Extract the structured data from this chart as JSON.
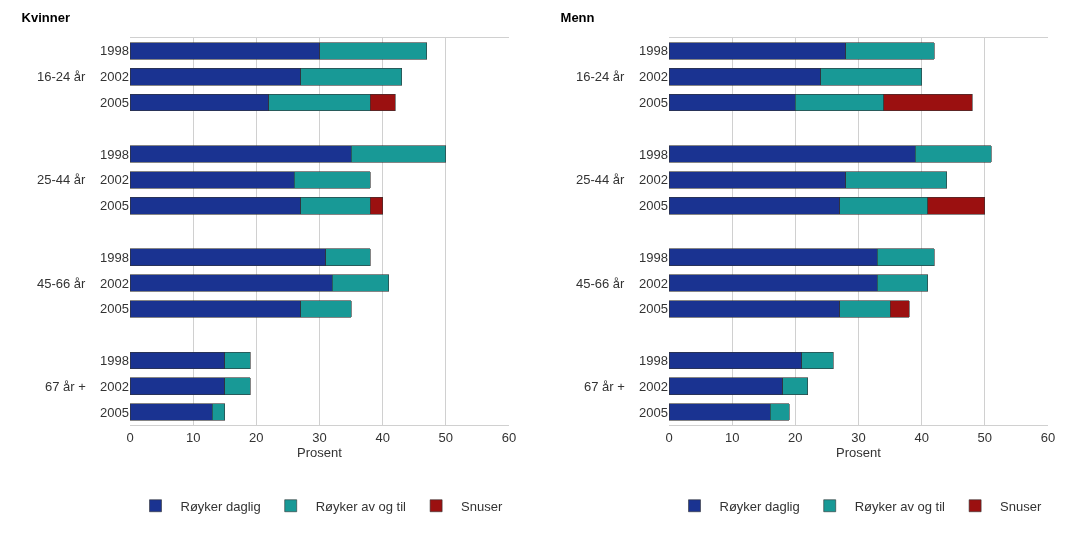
{
  "chart_data": [
    {
      "type": "bar",
      "orientation": "horizontal",
      "stacked": true,
      "title": "Kvinner",
      "xlabel": "Prosent",
      "categories": [
        "1998",
        "2002",
        "2005",
        null,
        "1998",
        "2002",
        "2005",
        null,
        "1998",
        "2002",
        "2005",
        null,
        "1998",
        "2002",
        "2005"
      ],
      "annotations": [
        "16-24 år",
        "25-44 år",
        "45-66 år",
        "67 år +"
      ],
      "series": [
        {
          "name": "Røyker daglig",
          "color": "#1a3391",
          "values": [
            30,
            27,
            22,
            null,
            35,
            26,
            27,
            null,
            31,
            32,
            27,
            null,
            15,
            15,
            13
          ]
        },
        {
          "name": "Røyker av og til",
          "color": "#189996",
          "values": [
            17,
            16,
            16,
            null,
            15,
            12,
            11,
            null,
            7,
            9,
            8,
            null,
            4,
            4,
            2
          ]
        },
        {
          "name": "Snuser",
          "color": "#9b1010",
          "values": [
            null,
            null,
            4,
            null,
            null,
            null,
            2,
            null,
            null,
            null,
            null,
            null,
            null,
            null,
            null
          ]
        }
      ],
      "xlim": [
        0,
        60
      ],
      "xticks": [
        0,
        10,
        20,
        30,
        40,
        50,
        60
      ],
      "grid": "x",
      "legend": "bottom"
    },
    {
      "type": "bar",
      "orientation": "horizontal",
      "stacked": true,
      "title": "Menn",
      "xlabel": "Prosent",
      "categories": [
        "1998",
        "2002",
        "2005",
        null,
        "1998",
        "2002",
        "2005",
        null,
        "1998",
        "2002",
        "2005",
        null,
        "1998",
        "2002",
        "2005"
      ],
      "annotations": [
        "16-24 år",
        "25-44 år",
        "45-66 år",
        "67 år +"
      ],
      "series": [
        {
          "name": "Røyker daglig",
          "color": "#1a3391",
          "values": [
            28,
            24,
            20,
            null,
            39,
            28,
            27,
            null,
            33,
            33,
            27,
            null,
            21,
            18,
            16
          ]
        },
        {
          "name": "Røyker av og til",
          "color": "#189996",
          "values": [
            14,
            16,
            14,
            null,
            12,
            16,
            14,
            null,
            9,
            8,
            8,
            null,
            5,
            4,
            3
          ]
        },
        {
          "name": "Snuser",
          "color": "#9b1010",
          "values": [
            null,
            null,
            14,
            null,
            null,
            null,
            9,
            null,
            null,
            null,
            3,
            null,
            null,
            null,
            null
          ]
        }
      ],
      "xlim": [
        0,
        60
      ],
      "xticks": [
        0,
        10,
        20,
        30,
        40,
        50,
        60
      ],
      "grid": "x",
      "legend": "bottom"
    }
  ]
}
